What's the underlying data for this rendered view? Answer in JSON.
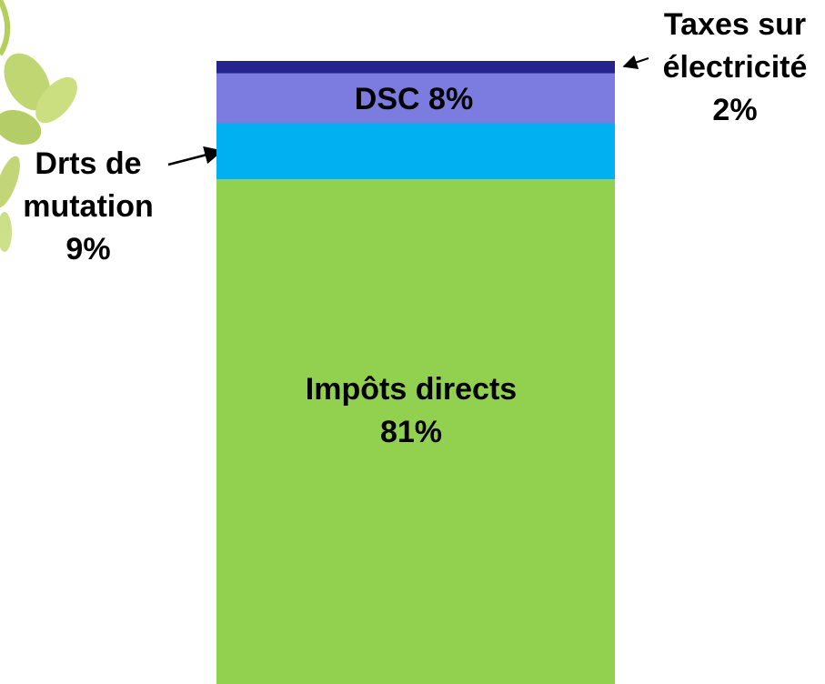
{
  "chart_data": {
    "type": "stacked-bar",
    "series": [
      {
        "name": "Impôts directs",
        "color": "#92d050",
        "values": [
          81
        ],
        "value_labels": [
          "81%"
        ]
      },
      {
        "name": "Drts de mutation",
        "color": "#00b0f0",
        "values": [
          9
        ],
        "value_labels": [
          "9%"
        ]
      },
      {
        "name": "DSC",
        "color": "#7b7be0",
        "values": [
          8
        ],
        "value_labels": [
          "8%"
        ]
      },
      {
        "name": "Taxes sur électricité",
        "color": "#24248c",
        "values": [
          2
        ],
        "value_labels": [
          "2%"
        ]
      }
    ]
  }
}
